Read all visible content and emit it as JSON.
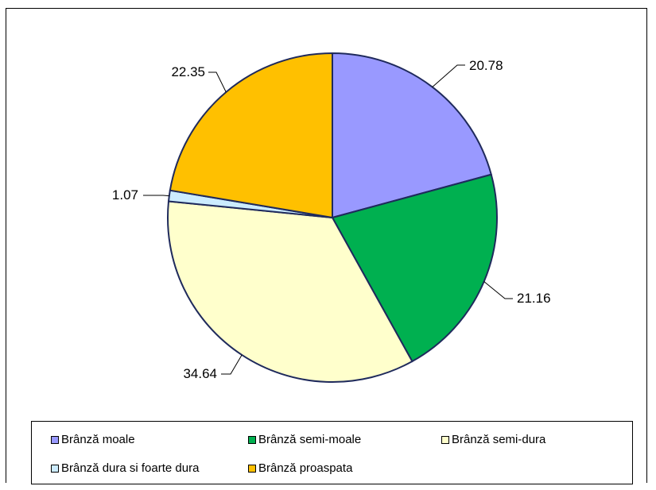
{
  "chart_data": {
    "type": "pie",
    "categories": [
      "Brânză moale",
      "Brânză semi-moale",
      "Brânză semi-dura",
      "Brânză dura si foarte dura",
      "Brânză proaspata"
    ],
    "values": [
      20.78,
      21.16,
      34.64,
      1.07,
      22.35
    ],
    "data_labels": [
      "20.78",
      "21.16",
      "34.64",
      "1.07",
      "22.35"
    ],
    "colors": [
      "#9999FF",
      "#00B050",
      "#FFFFCC",
      "#CCECFF",
      "#FFC000"
    ],
    "legend": {
      "placement": "bottom",
      "items": [
        {
          "label": "Brânză moale",
          "color": "#9999FF"
        },
        {
          "label": "Brânză semi-moale",
          "color": "#00B050"
        },
        {
          "label": "Brânză semi-dura",
          "color": "#FFFFCC"
        },
        {
          "label": "Brânză dura si foarte dura",
          "color": "#CCECFF"
        },
        {
          "label": "Brânză proaspata",
          "color": "#FFC000"
        }
      ]
    }
  }
}
